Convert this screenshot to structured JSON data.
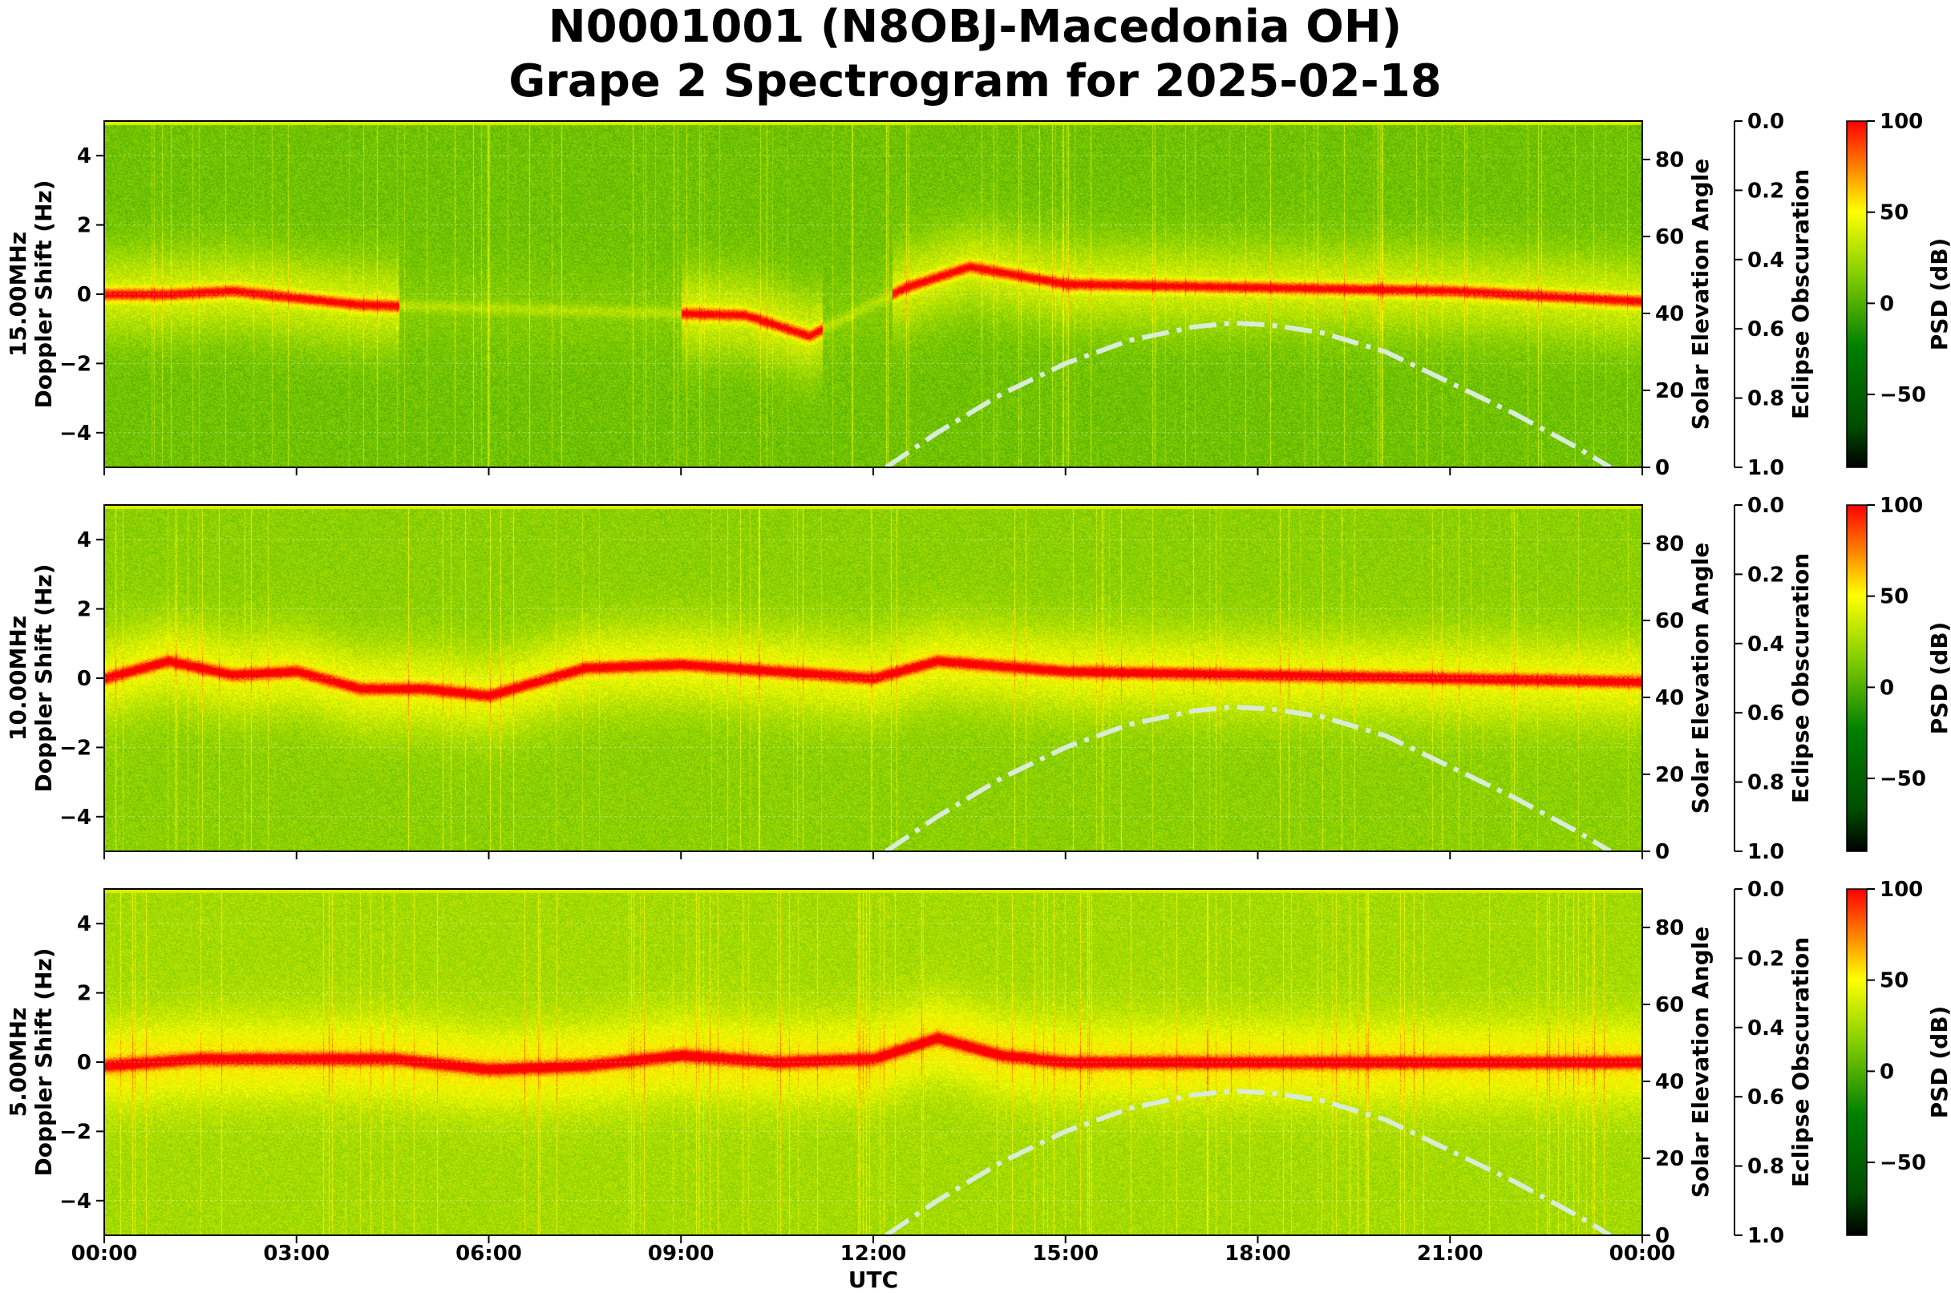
{
  "title_line1": "N0001001 (N8OBJ-Macedonia OH)",
  "title_line2": "Grape 2 Spectrogram for 2025-02-18",
  "xlabel": "UTC",
  "x_ticks": [
    "00:00",
    "03:00",
    "06:00",
    "09:00",
    "12:00",
    "15:00",
    "18:00",
    "21:00",
    "00:00"
  ],
  "right_axis_label": "Solar Elevation Angle",
  "eclipse_axis_label": "Eclipse Obscuration",
  "colorbar_label": "PSD (dB)",
  "colors": {
    "cmap": [
      "#000000",
      "#006400",
      "#008000",
      "#7fcc00",
      "#ffff00",
      "#ff0000"
    ],
    "solar_curve": "#d8ecd8"
  },
  "chart_data": [
    {
      "type": "heatmap",
      "name": "15.00MHz",
      "ylabel": "15.00MHz\nDoppler Shift (Hz)",
      "ylabel_line1": "15.00MHz",
      "ylabel_line2": "Doppler Shift (Hz)",
      "xlim": [
        "00:00",
        "24:00"
      ],
      "ylim": [
        -5,
        5
      ],
      "y_ticks": [
        "4",
        "2",
        "0",
        "−2",
        "−4"
      ],
      "y_tick_values": [
        4,
        2,
        0,
        -2,
        -4
      ],
      "right_ylim": [
        0,
        90
      ],
      "right_ticks": [
        "80",
        "60",
        "40",
        "20",
        "0"
      ],
      "right_tick_values": [
        80,
        60,
        40,
        20,
        0
      ],
      "eclipse_ylim": [
        0.0,
        1.0
      ],
      "eclipse_ticks": [
        "0.0",
        "0.2",
        "0.4",
        "0.6",
        "0.8",
        "1.0"
      ],
      "colorbar_range": [
        -90,
        100
      ],
      "colorbar_ticks": [
        "100",
        "50",
        "0",
        "−50"
      ],
      "colorbar_tick_values": [
        100,
        50,
        0,
        -50
      ],
      "background_level": 10,
      "carrier_trace": [
        [
          0.0,
          0.0
        ],
        [
          1.0,
          0.0
        ],
        [
          2.0,
          0.1
        ],
        [
          3.0,
          -0.1
        ],
        [
          4.0,
          -0.3
        ],
        [
          10.0,
          -0.6
        ],
        [
          11.0,
          -1.2
        ],
        [
          12.5,
          0.2
        ],
        [
          13.5,
          0.8
        ],
        [
          15.0,
          0.3
        ],
        [
          18.0,
          0.2
        ],
        [
          21.0,
          0.1
        ],
        [
          24.0,
          -0.2
        ]
      ],
      "solar_elevation": [
        [
          12.2,
          0
        ],
        [
          13,
          9
        ],
        [
          14,
          19
        ],
        [
          15,
          27
        ],
        [
          16,
          33
        ],
        [
          17,
          36.5
        ],
        [
          17.6,
          37.5
        ],
        [
          18.2,
          37
        ],
        [
          19,
          35
        ],
        [
          20,
          30
        ],
        [
          21,
          22
        ],
        [
          22,
          14
        ],
        [
          23,
          5
        ],
        [
          23.5,
          0
        ]
      ]
    },
    {
      "type": "heatmap",
      "name": "10.00MHz",
      "ylabel": "10.00MHz\nDoppler Shift (Hz)",
      "ylabel_line1": "10.00MHz",
      "ylabel_line2": "Doppler Shift (Hz)",
      "xlim": [
        "00:00",
        "24:00"
      ],
      "ylim": [
        -5,
        5
      ],
      "y_ticks": [
        "4",
        "2",
        "0",
        "−2",
        "−4"
      ],
      "y_tick_values": [
        4,
        2,
        0,
        -2,
        -4
      ],
      "right_ylim": [
        0,
        90
      ],
      "right_ticks": [
        "80",
        "60",
        "40",
        "20",
        "0"
      ],
      "right_tick_values": [
        80,
        60,
        40,
        20,
        0
      ],
      "eclipse_ylim": [
        0.0,
        1.0
      ],
      "eclipse_ticks": [
        "0.0",
        "0.2",
        "0.4",
        "0.6",
        "0.8",
        "1.0"
      ],
      "colorbar_range": [
        -90,
        100
      ],
      "colorbar_ticks": [
        "100",
        "50",
        "0",
        "−50"
      ],
      "colorbar_tick_values": [
        100,
        50,
        0,
        -50
      ],
      "background_level": 18,
      "carrier_trace": [
        [
          0.0,
          0.0
        ],
        [
          1.0,
          0.5
        ],
        [
          2.0,
          0.1
        ],
        [
          3.0,
          0.2
        ],
        [
          4.0,
          -0.3
        ],
        [
          5.0,
          -0.3
        ],
        [
          6.0,
          -0.5
        ],
        [
          7.5,
          0.3
        ],
        [
          9.0,
          0.4
        ],
        [
          10.5,
          0.2
        ],
        [
          12.0,
          0.0
        ],
        [
          13.0,
          0.5
        ],
        [
          15.0,
          0.2
        ],
        [
          18.0,
          0.1
        ],
        [
          21.0,
          0.0
        ],
        [
          24.0,
          -0.1
        ]
      ],
      "solar_elevation": [
        [
          12.2,
          0
        ],
        [
          13,
          9
        ],
        [
          14,
          19
        ],
        [
          15,
          27
        ],
        [
          16,
          33
        ],
        [
          17,
          36.5
        ],
        [
          17.6,
          37.5
        ],
        [
          18.2,
          37
        ],
        [
          19,
          35
        ],
        [
          20,
          30
        ],
        [
          21,
          22
        ],
        [
          22,
          14
        ],
        [
          23,
          5
        ],
        [
          23.5,
          0
        ]
      ]
    },
    {
      "type": "heatmap",
      "name": "5.00MHz",
      "ylabel": "5.00MHz\nDoppler Shift (Hz)",
      "ylabel_line1": "5.00MHz",
      "ylabel_line2": "Doppler Shift (Hz)",
      "xlim": [
        "00:00",
        "24:00"
      ],
      "ylim": [
        -5,
        5
      ],
      "y_ticks": [
        "4",
        "2",
        "0",
        "−2",
        "−4"
      ],
      "y_tick_values": [
        4,
        2,
        0,
        -2,
        -4
      ],
      "right_ylim": [
        0,
        90
      ],
      "right_ticks": [
        "80",
        "60",
        "40",
        "20",
        "0"
      ],
      "right_tick_values": [
        80,
        60,
        40,
        20,
        0
      ],
      "eclipse_ylim": [
        0.0,
        1.0
      ],
      "eclipse_ticks": [
        "0.0",
        "0.2",
        "0.4",
        "0.6",
        "0.8",
        "1.0"
      ],
      "colorbar_range": [
        -90,
        100
      ],
      "colorbar_ticks": [
        "100",
        "50",
        "0",
        "−50"
      ],
      "colorbar_tick_values": [
        100,
        50,
        0,
        -50
      ],
      "background_level": 25,
      "carrier_trace": [
        [
          0.0,
          -0.1
        ],
        [
          1.5,
          0.1
        ],
        [
          3.0,
          0.1
        ],
        [
          4.5,
          0.1
        ],
        [
          6.0,
          -0.2
        ],
        [
          7.5,
          -0.1
        ],
        [
          9.0,
          0.2
        ],
        [
          10.5,
          0.0
        ],
        [
          12.0,
          0.1
        ],
        [
          13.0,
          0.7
        ],
        [
          14.0,
          0.2
        ],
        [
          15.0,
          0.0
        ],
        [
          24.0,
          0.0
        ]
      ],
      "solar_elevation": [
        [
          12.2,
          0
        ],
        [
          13,
          9
        ],
        [
          14,
          19
        ],
        [
          15,
          27
        ],
        [
          16,
          33
        ],
        [
          17,
          36.5
        ],
        [
          17.6,
          37.5
        ],
        [
          18.2,
          37
        ],
        [
          19,
          35
        ],
        [
          20,
          30
        ],
        [
          21,
          22
        ],
        [
          22,
          14
        ],
        [
          23,
          5
        ],
        [
          23.5,
          0
        ]
      ]
    }
  ]
}
